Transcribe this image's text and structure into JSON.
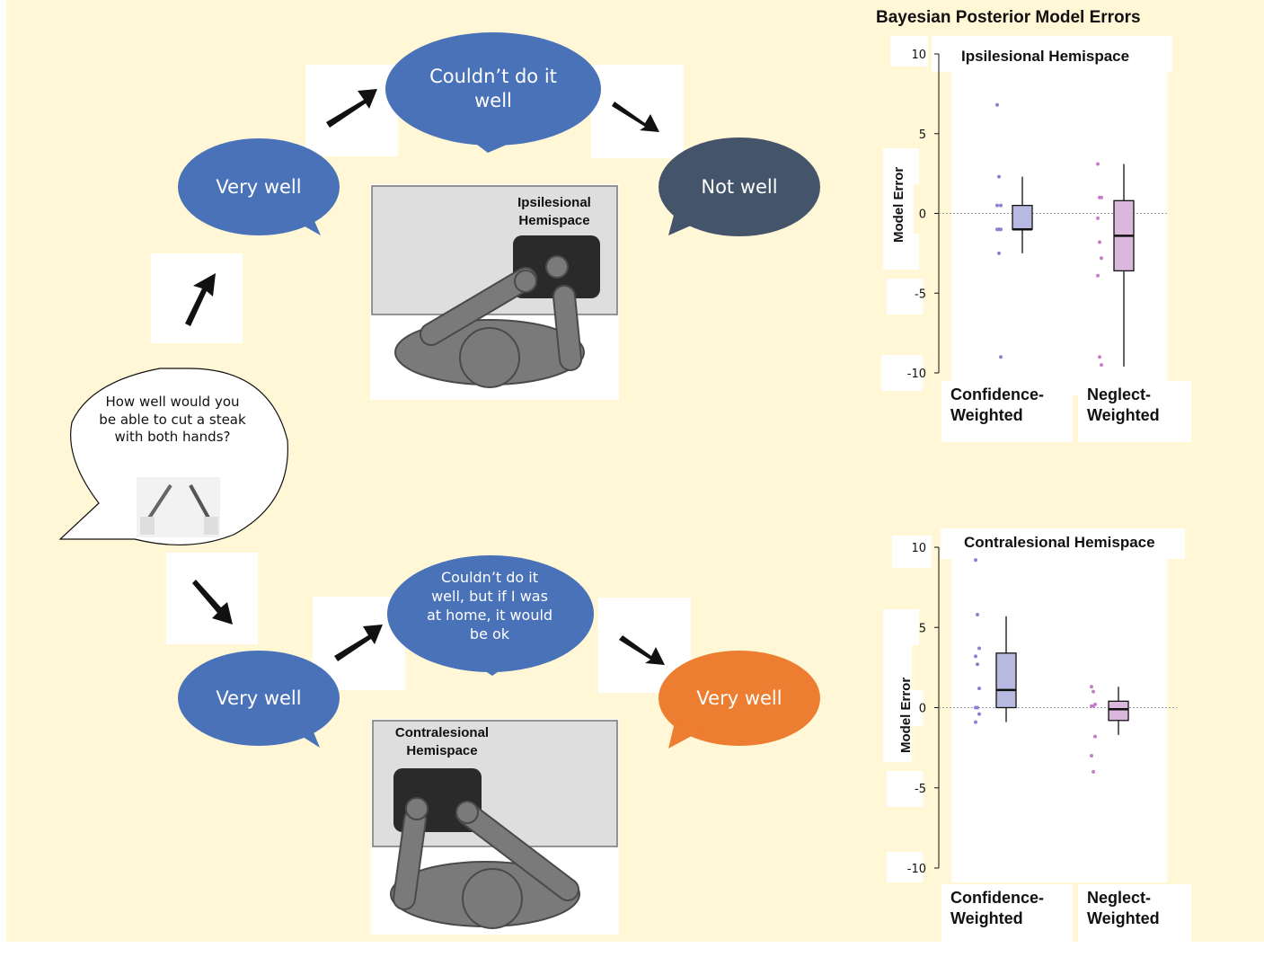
{
  "diagram": {
    "question": "How well would you be able to cut a steak with both hands?",
    "ipsi_row": {
      "start_response": "Very well",
      "mid_response": "Couldn’t do it well",
      "end_response": "Not well",
      "hemispace_label": "Ipsilesional Hemispace"
    },
    "contra_row": {
      "start_response": "Very well",
      "mid_response": "Couldn’t do it well, but if I was at home, it would be ok",
      "end_response": "Very well",
      "hemispace_label": "Contralesional Hemispace"
    },
    "colors": {
      "background": "#fff7d6",
      "bubble_blue": "#4a72b8",
      "bubble_dark": "#44546a",
      "bubble_orange": "#ed7d31"
    }
  },
  "figure_title": "Bayesian Posterior Model Errors",
  "chart_data": [
    {
      "type": "box",
      "title": "Ipsilesional Hemispace",
      "ylabel": "Model Error",
      "ylim": [
        -10,
        10
      ],
      "yticks": [
        10,
        5,
        0,
        -5,
        -10
      ],
      "categories": [
        "Confidence-Weighted",
        "Neglect-Weighted"
      ],
      "category_lines": [
        [
          "Confidence-",
          "Weighted"
        ],
        [
          "Neglect-",
          "Weighted"
        ]
      ],
      "series": [
        {
          "category": "Confidence-Weighted",
          "color": "#b8b9e0",
          "min": -2.5,
          "q1": -1,
          "median": -1,
          "q3": 0.5,
          "max": 2.3,
          "points": [
            6.8,
            2.3,
            0.5,
            0.5,
            -1,
            -1,
            -1,
            -2.5,
            -9
          ]
        },
        {
          "category": "Neglect-Weighted",
          "color": "#dab7dc",
          "min": -9.6,
          "q1": -3.6,
          "median": -1.4,
          "q3": 0.8,
          "max": 3.1,
          "points": [
            3.1,
            1,
            1,
            -0.3,
            -1.8,
            -2.8,
            -3.9,
            -9,
            -9.5
          ]
        }
      ]
    },
    {
      "type": "box",
      "title": "Contralesional Hemispace",
      "ylabel": "Model Error",
      "ylim": [
        -10,
        10
      ],
      "yticks": [
        10,
        5,
        0,
        -5,
        -10
      ],
      "categories": [
        "Confidence-Weighted",
        "Neglect-Weighted"
      ],
      "category_lines": [
        [
          "Confidence-",
          "Weighted"
        ],
        [
          "Neglect-",
          "Weighted"
        ]
      ],
      "series": [
        {
          "category": "Confidence-Weighted",
          "color": "#b8b9e0",
          "min": -0.9,
          "q1": 0,
          "median": 1.1,
          "q3": 3.4,
          "max": 5.7,
          "points": [
            9.2,
            5.8,
            3.7,
            3.2,
            2.7,
            1.2,
            0,
            0,
            -0.4,
            -0.9
          ]
        },
        {
          "category": "Neglect-Weighted",
          "color": "#dab7dc",
          "min": -1.7,
          "q1": -0.8,
          "median": -0.1,
          "q3": 0.4,
          "max": 1.3,
          "points": [
            1.3,
            1,
            0.2,
            0.1,
            0.1,
            -1.8,
            -3,
            -4
          ]
        }
      ]
    }
  ]
}
